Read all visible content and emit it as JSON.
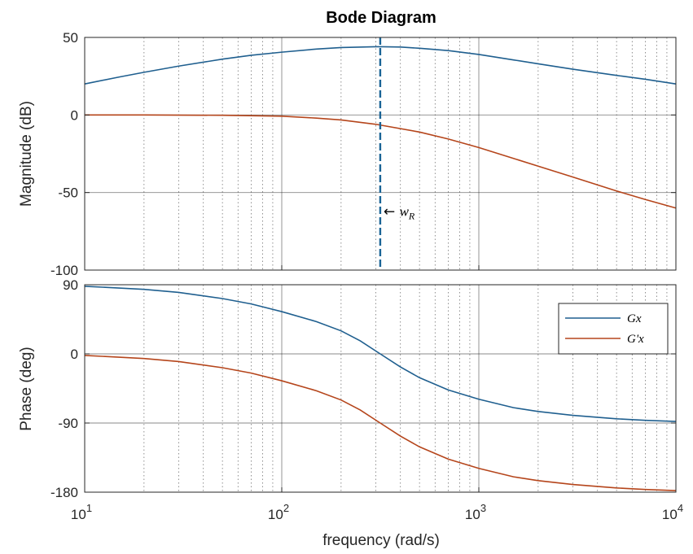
{
  "chart_data": {
    "type": "line",
    "title": "Bode Diagram",
    "xlabel": "frequency  (rad/s)",
    "xscale": "log",
    "xlim": [
      10,
      10000
    ],
    "x_ticks": [
      {
        "base": "10",
        "exp": "1"
      },
      {
        "base": "10",
        "exp": "2"
      },
      {
        "base": "10",
        "exp": "3"
      },
      {
        "base": "10",
        "exp": "4"
      }
    ],
    "grid": true,
    "panels": [
      {
        "name": "magnitude",
        "ylabel": "Magnitude (dB)",
        "ylim": [
          -100,
          50
        ],
        "yticks": [
          -100,
          -50,
          0,
          50
        ],
        "series": [
          {
            "color": "#1f5f8f",
            "x": [
              10,
              15,
              20,
              30,
              50,
              70,
              100,
              150,
              200,
              300,
              320,
              400,
              500,
              700,
              1000,
              1500,
              2000,
              3000,
              5000,
              7000,
              10000
            ],
            "y": [
              20,
              24.5,
              27.5,
              31.5,
              36,
              38.5,
              40.5,
              42.5,
              43.5,
              44,
              44,
              43.8,
              43,
              41.5,
              39,
              35.5,
              33,
              29.5,
              25.5,
              23,
              20
            ]
          },
          {
            "color": "#b5451b",
            "x": [
              10,
              20,
              50,
              100,
              150,
              200,
              300,
              500,
              700,
              1000,
              1500,
              2000,
              3000,
              5000,
              7000,
              10000
            ],
            "y": [
              0,
              0,
              -0.2,
              -0.8,
              -2,
              -3.2,
              -6,
              -11,
              -15.5,
              -21,
              -28,
              -33,
              -40,
              -49,
              -54.5,
              -60
            ]
          }
        ],
        "annotation": {
          "type": "vline",
          "x": 316,
          "color": "#1a6496",
          "label": "w",
          "label_sub": "R",
          "arrow": "←",
          "label_y": -62
        }
      },
      {
        "name": "phase",
        "ylabel": "Phase (deg)",
        "ylim": [
          -180,
          90
        ],
        "yticks": [
          -180,
          -90,
          0,
          90
        ],
        "series": [
          {
            "name": "Gx",
            "color": "#1f5f8f",
            "x": [
              10,
              20,
              30,
              50,
              70,
              100,
              150,
              200,
              250,
              316,
              400,
              500,
              700,
              1000,
              1500,
              2000,
              3000,
              5000,
              7000,
              10000
            ],
            "y": [
              88,
              84,
              80,
              72,
              65,
              55,
              42,
              30,
              17,
              0,
              -17,
              -31,
              -47,
              -59,
              -70,
              -75,
              -80,
              -84.5,
              -86.5,
              -88
            ]
          },
          {
            "name": "G'x",
            "color": "#b5451b",
            "x": [
              10,
              20,
              30,
              50,
              70,
              100,
              150,
              200,
              250,
              316,
              400,
              500,
              700,
              1000,
              1500,
              2000,
              3000,
              5000,
              7000,
              10000
            ],
            "y": [
              -2,
              -6,
              -10,
              -18,
              -25,
              -35,
              -48,
              -60,
              -73,
              -90,
              -107,
              -121,
              -137,
              -149,
              -160,
              -165,
              -170,
              -174.5,
              -176.5,
              -178
            ]
          }
        ],
        "legend": {
          "position": "top-right"
        }
      }
    ]
  }
}
